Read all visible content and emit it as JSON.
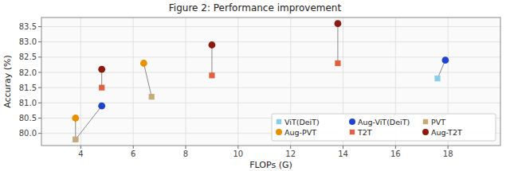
{
  "chart_data": {
    "type": "scatter",
    "title": "Figure 2:  Performance improvement",
    "xlabel": "FLOPs (G)",
    "ylabel": "Accuray (%)",
    "series": [
      {
        "name": "ViT(DeiT)",
        "color": "#87CEEB",
        "marker": "square",
        "x": [
          3.8,
          17.6
        ],
        "values": [
          79.8,
          81.8
        ]
      },
      {
        "name": "Aug-ViT(DeiT)",
        "color": "#2244CC",
        "marker": "circle",
        "x": [
          4.8,
          17.9
        ],
        "values": [
          80.9,
          82.4
        ]
      },
      {
        "name": "PVT",
        "color": "#C8AA78",
        "marker": "square",
        "x": [
          3.8,
          6.7
        ],
        "values": [
          79.8,
          81.2
        ]
      },
      {
        "name": "Aug-PVT",
        "color": "#E89000",
        "marker": "circle",
        "x": [
          3.8,
          6.4
        ],
        "values": [
          80.5,
          82.3
        ]
      },
      {
        "name": "T2T",
        "color": "#E06040",
        "marker": "square",
        "x": [
          4.8,
          9.0,
          13.8
        ],
        "values": [
          81.5,
          81.9,
          82.3
        ]
      },
      {
        "name": "Aug-T2T",
        "color": "#8B1A10",
        "marker": "circle",
        "x": [
          4.8,
          9.0,
          13.8
        ],
        "values": [
          82.1,
          82.9,
          83.6
        ]
      }
    ],
    "connections": [
      [
        3.8,
        79.8,
        3.8,
        80.5
      ],
      [
        3.8,
        79.8,
        4.8,
        80.9
      ],
      [
        3.8,
        79.8,
        3.8,
        79.8
      ],
      [
        6.7,
        81.2,
        6.4,
        82.3
      ],
      [
        4.8,
        81.5,
        4.8,
        82.1
      ],
      [
        9.0,
        81.9,
        9.0,
        82.9
      ],
      [
        13.8,
        82.3,
        13.8,
        83.6
      ],
      [
        17.6,
        81.8,
        17.9,
        82.4
      ]
    ],
    "xlim": [
      2.5,
      20.0
    ],
    "ylim": [
      79.6,
      83.8
    ],
    "xticks": [
      4,
      6,
      8,
      10,
      12,
      14,
      16,
      18
    ],
    "yticks": [
      {
        "value": 80.0,
        "label": "80.0"
      },
      {
        "value": 80.5,
        "label": "80.5"
      },
      {
        "value": 81.0,
        "label": "81.0"
      },
      {
        "value": 81.5,
        "label": "81.5"
      },
      {
        "value": 82.0,
        "label": "82.0"
      },
      {
        "value": 82.5,
        "label": "82.5"
      },
      {
        "value": 83.0,
        "label": "83.0"
      },
      {
        "value": 83.5,
        "label": "83.5"
      }
    ],
    "grid": true,
    "legend": "lower right"
  }
}
